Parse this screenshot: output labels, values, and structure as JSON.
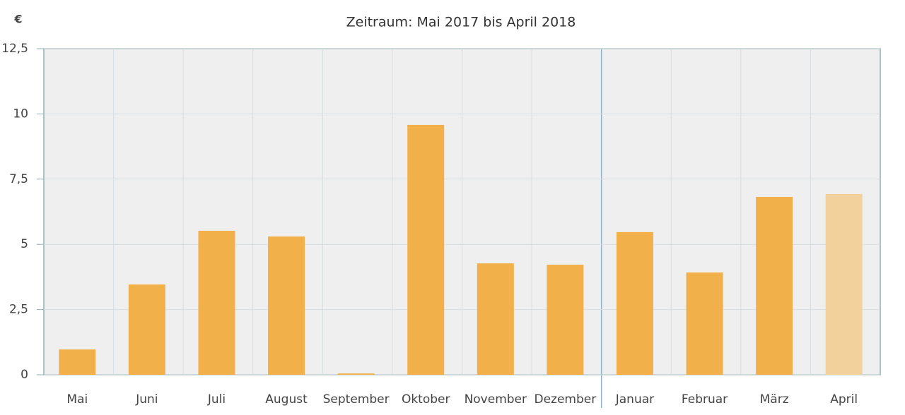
{
  "chart_data": {
    "type": "bar",
    "title": "Zeitraum: Mai 2017 bis April 2018",
    "y_label": "€",
    "categories": [
      "Mai",
      "Juni",
      "Juli",
      "August",
      "September",
      "Oktober",
      "November",
      "Dezember",
      "Januar",
      "Februar",
      "März",
      "April"
    ],
    "values": [
      0.97,
      3.46,
      5.52,
      5.3,
      0.05,
      9.58,
      4.27,
      4.22,
      5.47,
      3.92,
      6.82,
      6.93
    ],
    "colors": [
      "#f2b04a",
      "#f2b04a",
      "#f2b04a",
      "#f2b04a",
      "#f2b04a",
      "#f2b04a",
      "#f2b04a",
      "#f2b04a",
      "#f2b04a",
      "#f2b04a",
      "#f2b04a",
      "#f2d19c"
    ],
    "ylim": [
      0,
      12.5
    ],
    "yticks": [
      0,
      {
        "value": 2.5,
        "label": "2,5"
      },
      5,
      {
        "value": 7.5,
        "label": "7,5"
      },
      10,
      {
        "value": 12.5,
        "label": "12,5"
      }
    ],
    "grid": true
  }
}
